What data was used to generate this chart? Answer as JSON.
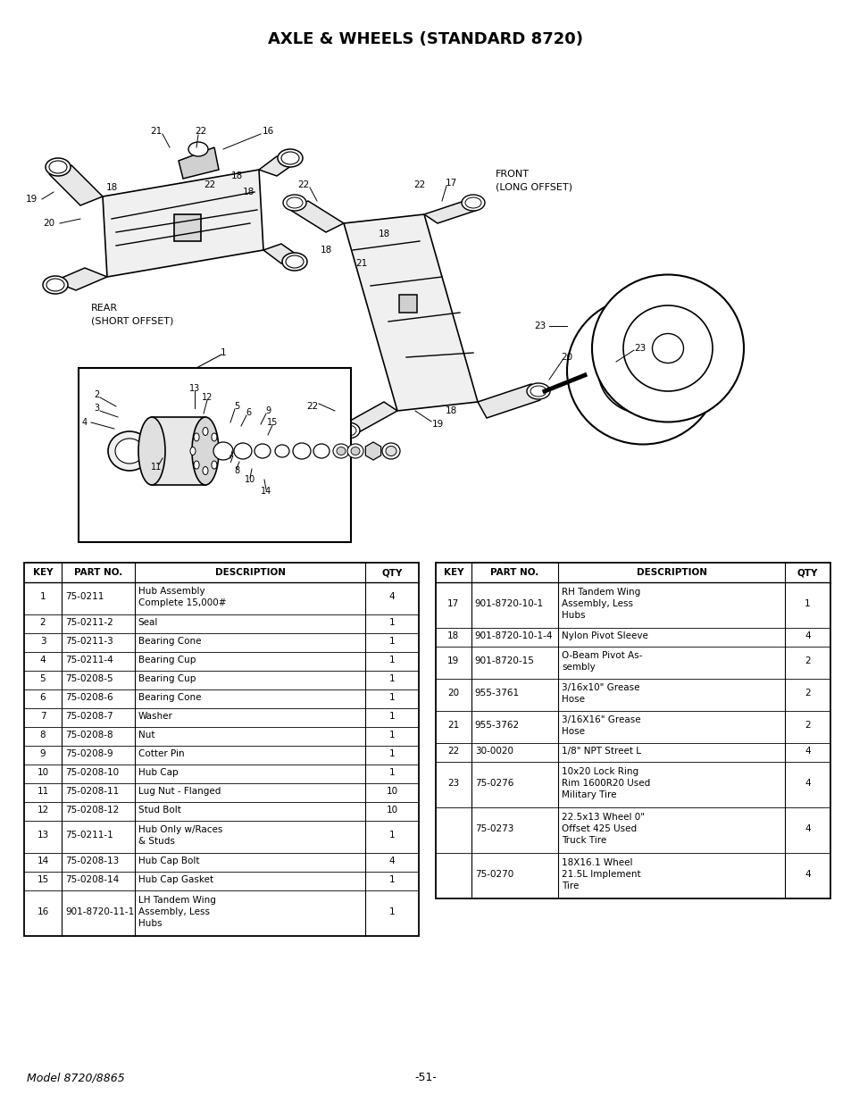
{
  "title": "AXLE & WHEELS (STANDARD 8720)",
  "title_fontsize": 13,
  "background_color": "#ffffff",
  "left_table": {
    "headers": [
      "KEY",
      "PART NO.",
      "DESCRIPTION",
      "QTY"
    ],
    "rows": [
      [
        "1",
        "75-0211",
        "Hub Assembly\nComplete 15,000#",
        "4"
      ],
      [
        "2",
        "75-0211-2",
        "Seal",
        "1"
      ],
      [
        "3",
        "75-0211-3",
        "Bearing Cone",
        "1"
      ],
      [
        "4",
        "75-0211-4",
        "Bearing Cup",
        "1"
      ],
      [
        "5",
        "75-0208-5",
        "Bearing Cup",
        "1"
      ],
      [
        "6",
        "75-0208-6",
        "Bearing Cone",
        "1"
      ],
      [
        "7",
        "75-0208-7",
        "Washer",
        "1"
      ],
      [
        "8",
        "75-0208-8",
        "Nut",
        "1"
      ],
      [
        "9",
        "75-0208-9",
        "Cotter Pin",
        "1"
      ],
      [
        "10",
        "75-0208-10",
        "Hub Cap",
        "1"
      ],
      [
        "11",
        "75-0208-11",
        "Lug Nut - Flanged",
        "10"
      ],
      [
        "12",
        "75-0208-12",
        "Stud Bolt",
        "10"
      ],
      [
        "13",
        "75-0211-1",
        "Hub Only w/Races\n& Studs",
        "1"
      ],
      [
        "14",
        "75-0208-13",
        "Hub Cap Bolt",
        "4"
      ],
      [
        "15",
        "75-0208-14",
        "Hub Cap Gasket",
        "1"
      ],
      [
        "16",
        "901-8720-11-1",
        "LH Tandem Wing\nAssembly, Less\nHubs",
        "1"
      ]
    ]
  },
  "right_table": {
    "headers": [
      "KEY",
      "PART NO.",
      "DESCRIPTION",
      "QTY"
    ],
    "rows": [
      [
        "17",
        "901-8720-10-1",
        "RH Tandem Wing\nAssembly, Less\nHubs",
        "1"
      ],
      [
        "18",
        "901-8720-10-1-4",
        "Nylon Pivot Sleeve",
        "4"
      ],
      [
        "19",
        "901-8720-15",
        "O-Beam Pivot As-\nsembly",
        "2"
      ],
      [
        "20",
        "955-3761",
        "3/16x10\" Grease\nHose",
        "2"
      ],
      [
        "21",
        "955-3762",
        "3/16X16\" Grease\nHose",
        "2"
      ],
      [
        "22",
        "30-0020",
        "1/8\" NPT Street L",
        "4"
      ],
      [
        "23",
        "75-0276",
        "10x20 Lock Ring\nRim 1600R20 Used\nMilitary Tire",
        "4"
      ],
      [
        "",
        "75-0273",
        "22.5x13 Wheel 0\"\nOffset 425 Used\nTruck Tire",
        "4"
      ],
      [
        "",
        "75-0270",
        "18X16.1 Wheel\n21.5L Implement\nTire",
        "4"
      ]
    ]
  },
  "footer_left": "Model 8720/8865",
  "footer_center": "-51-"
}
